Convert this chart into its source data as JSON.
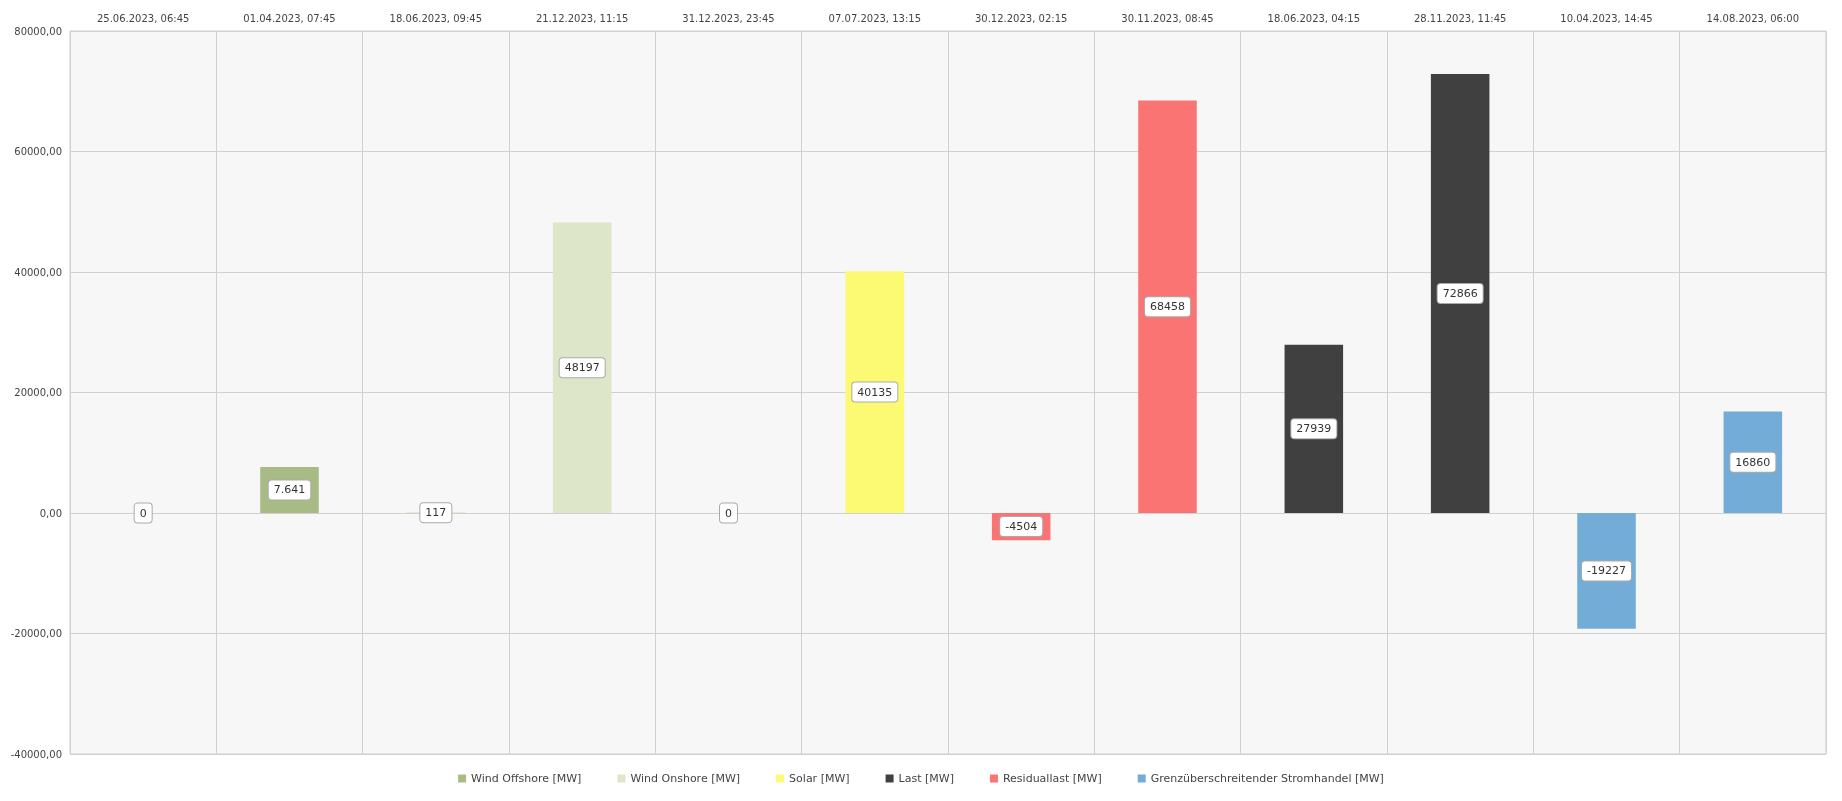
{
  "chart_data": {
    "type": "bar",
    "stacked": true,
    "categories": [
      "25.06.2023, 06:45",
      "01.04.2023, 07:45",
      "18.06.2023, 09:45",
      "21.12.2023, 11:15",
      "31.12.2023, 23:45",
      "07.07.2023, 13:15",
      "30.12.2023, 02:15",
      "30.11.2023, 08:45",
      "18.06.2023, 04:15",
      "28.11.2023, 11:45",
      "10.04.2023, 14:45",
      "14.08.2023, 06:00"
    ],
    "series": [
      {
        "name": "Wind Offshore [MW]",
        "color": "#a9bb85",
        "values": [
          0,
          7641,
          null,
          null,
          null,
          null,
          null,
          null,
          null,
          null,
          null,
          null
        ],
        "value_labels": [
          "0",
          "7.641",
          null,
          null,
          null,
          null,
          null,
          null,
          null,
          null,
          null,
          null
        ]
      },
      {
        "name": "Wind Onshore [MW]",
        "color": "#dde6c8",
        "values": [
          null,
          null,
          117,
          48197,
          null,
          null,
          null,
          null,
          null,
          null,
          null,
          null
        ],
        "value_labels": [
          null,
          null,
          "117",
          "48197",
          null,
          null,
          null,
          null,
          null,
          null,
          null,
          null
        ]
      },
      {
        "name": "Solar [MW]",
        "color": "#fcfa72",
        "values": [
          null,
          null,
          null,
          null,
          0,
          40135,
          null,
          null,
          null,
          null,
          null,
          null
        ],
        "value_labels": [
          null,
          null,
          null,
          null,
          "0",
          "40135",
          null,
          null,
          null,
          null,
          null,
          null
        ]
      },
      {
        "name": "Last [MW]",
        "color": "#404040",
        "values": [
          null,
          null,
          null,
          null,
          null,
          null,
          null,
          null,
          27939,
          72866,
          null,
          null
        ],
        "value_labels": [
          null,
          null,
          null,
          null,
          null,
          null,
          null,
          null,
          "27939",
          "72866",
          null,
          null
        ]
      },
      {
        "name": "Residuallast [MW]",
        "color": "#fa7474",
        "values": [
          null,
          null,
          null,
          null,
          null,
          null,
          -4504,
          68458,
          null,
          null,
          null,
          null
        ],
        "value_labels": [
          null,
          null,
          null,
          null,
          null,
          null,
          "-4504",
          "68458",
          null,
          null,
          null,
          null
        ]
      },
      {
        "name": "Grenzüberschreitender Stromhandel [MW]",
        "color": "#74acd8",
        "values": [
          null,
          null,
          null,
          null,
          null,
          null,
          null,
          null,
          null,
          null,
          -19227,
          16860
        ],
        "value_labels": [
          null,
          null,
          null,
          null,
          null,
          null,
          null,
          null,
          null,
          null,
          "-19227",
          "16860"
        ]
      }
    ],
    "ylim": [
      -40000,
      80000
    ],
    "yticks": [
      {
        "value": -40000,
        "label": "-40000,00"
      },
      {
        "value": -20000,
        "label": "-20000,00"
      },
      {
        "value": 0,
        "label": "0,00"
      },
      {
        "value": 20000,
        "label": "20000,00"
      },
      {
        "value": 40000,
        "label": "40000,00"
      },
      {
        "value": 60000,
        "label": "60000,00"
      },
      {
        "value": 80000,
        "label": "80000,00"
      }
    ],
    "grid": true,
    "legend": "bottom"
  }
}
